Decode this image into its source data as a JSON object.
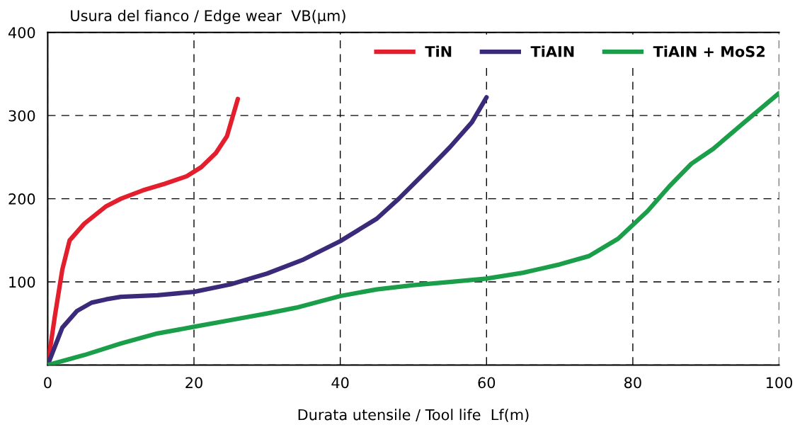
{
  "chart_data": {
    "type": "line",
    "xlabel": "Durata utensile / Tool life  Lf(m)",
    "ylabel": "Usura del fianco / Edge wear  VB(µm)",
    "xlim": [
      0,
      100
    ],
    "ylim": [
      0,
      400
    ],
    "xticks": [
      0,
      20,
      40,
      60,
      80,
      100
    ],
    "yticks": [
      {
        "value": 0,
        "label": null
      },
      100,
      200,
      300,
      400
    ],
    "grid": true,
    "legend": "top right",
    "marker": "none",
    "line_style": "solid",
    "series": [
      {
        "name": "TiN",
        "color": "#e31e2d",
        "x": [
          0,
          1,
          2,
          3,
          4,
          5,
          7,
          8,
          10,
          13,
          16,
          19,
          21,
          23,
          24.5,
          26
        ],
        "values": [
          0,
          60,
          115,
          150,
          160,
          170,
          184,
          191,
          200,
          210,
          218,
          227,
          238,
          255,
          275,
          320
        ]
      },
      {
        "name": "TiAIN",
        "color": "#3b2a7a",
        "x": [
          0,
          2,
          4,
          6,
          8,
          10,
          15,
          20,
          25,
          30,
          35,
          40,
          45,
          48,
          52,
          55,
          58,
          60
        ],
        "values": [
          0,
          45,
          65,
          75,
          79,
          82,
          84,
          88,
          97,
          110,
          127,
          149,
          176,
          200,
          235,
          262,
          292,
          322
        ]
      },
      {
        "name": "TiAIN + MoS2",
        "color": "#1a9e4a",
        "x": [
          0,
          5,
          10,
          15,
          20,
          25,
          30,
          34,
          40,
          45,
          50,
          55,
          60,
          65,
          70,
          74,
          78,
          82,
          85,
          88,
          91,
          95,
          100
        ],
        "values": [
          0,
          12,
          26,
          38,
          46,
          54,
          62,
          69,
          83,
          91,
          96,
          100,
          104,
          111,
          121,
          131,
          152,
          185,
          215,
          242,
          260,
          290,
          327
        ]
      }
    ]
  }
}
